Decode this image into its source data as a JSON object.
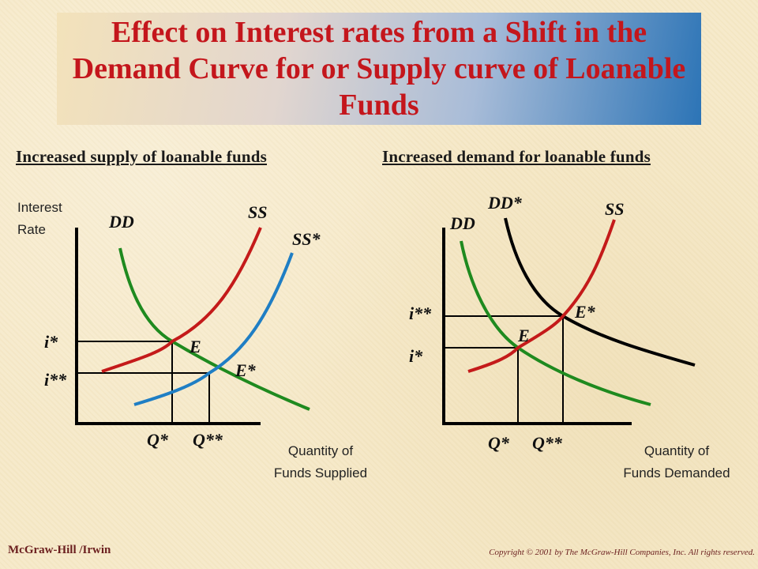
{
  "title": "Effect on Interest rates from a Shift in the Demand Curve for or Supply curve of Loanable Funds",
  "colors": {
    "title": "#c4161c",
    "demand": "#1f8a1f",
    "supply": "#c41a1a",
    "shifted_supply": "#1f7ec4",
    "shifted_demand": "#000000"
  },
  "left_panel": {
    "heading": "Increased supply of loanable funds",
    "y_axis_line1": "Interest",
    "y_axis_line2": "Rate",
    "x_axis_line1": "Quantity of",
    "x_axis_line2": "Funds Supplied",
    "labels": {
      "dd": "DD",
      "ss": "SS",
      "ss_star": "SS*",
      "e": "E",
      "e_star": "E*",
      "i_star": "i*",
      "i_2star": "i**",
      "q_star": "Q*",
      "q_2star": "Q**"
    }
  },
  "right_panel": {
    "heading": "Increased demand for loanable funds",
    "x_axis_line1": "Quantity of",
    "x_axis_line2": "Funds Demanded",
    "labels": {
      "dd": "DD",
      "dd_star": "DD*",
      "ss": "SS",
      "e": "E",
      "e_star": "E*",
      "i_star": "i*",
      "i_2star": "i**",
      "q_star": "Q*",
      "q_2star": "Q**"
    }
  },
  "footer": {
    "publisher": "McGraw-Hill /Irwin",
    "copyright": "Copyright © 2001 by The McGraw-Hill Companies, Inc. All rights reserved."
  }
}
